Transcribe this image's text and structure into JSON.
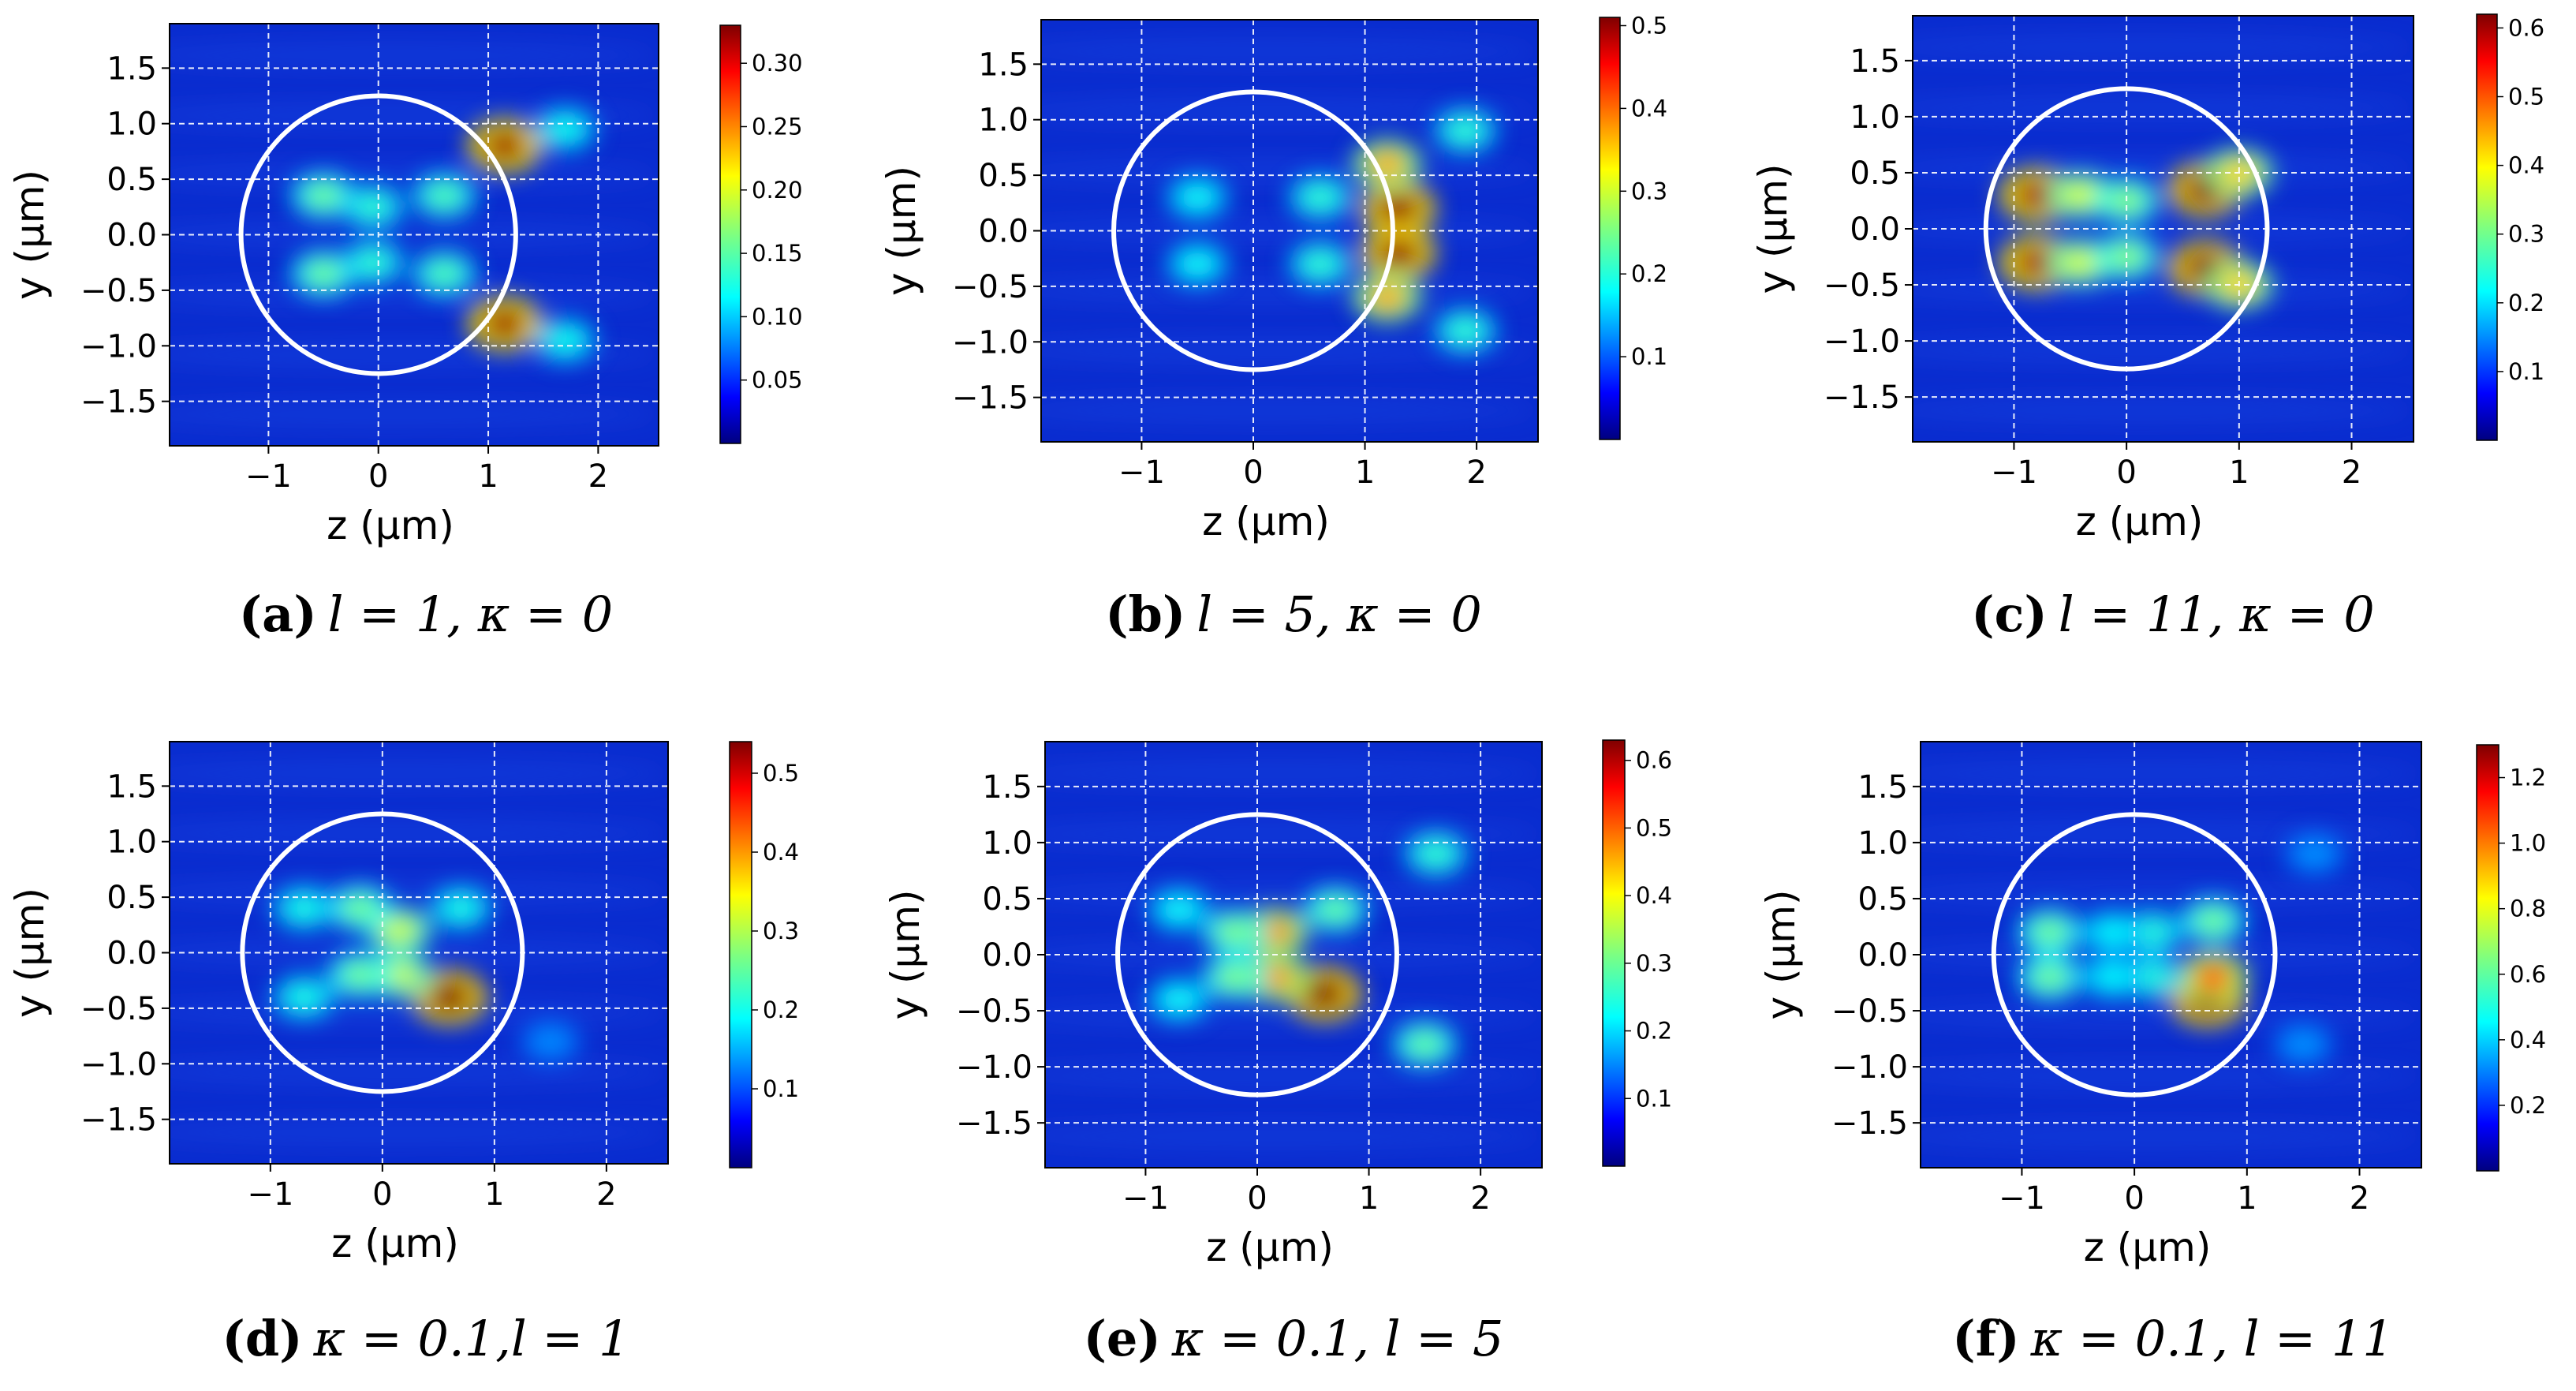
{
  "colors": {
    "grid": "#ffffff",
    "circle": "#ffffff",
    "background_field": "#0a2ccf",
    "colormap": [
      "#00007f",
      "#0000ff",
      "#007fff",
      "#00ffff",
      "#7fff7f",
      "#ffff00",
      "#ff7f00",
      "#ff0000",
      "#7f0000"
    ]
  },
  "chart_data": [
    {
      "id": "a",
      "type": "heatmap",
      "caption_letter": "(a)",
      "caption_text": "l = 1, κ = 0",
      "xlabel": "z (μm)",
      "ylabel": "y (μm)",
      "xlim": [
        -1.9,
        2.55
      ],
      "ylim": [
        -1.9,
        1.9
      ],
      "xticks": [
        -1,
        0,
        1,
        2
      ],
      "xtick_labels": [
        "−1",
        "0",
        "1",
        "2"
      ],
      "yticks": [
        -1.5,
        -1.0,
        -0.5,
        0.0,
        0.5,
        1.0,
        1.5
      ],
      "ytick_labels": [
        "−1.5",
        "−1.0",
        "−0.5",
        "0.0",
        "0.5",
        "1.0",
        "1.5"
      ],
      "grid": true,
      "circle_radius": 1.25,
      "colorbar": {
        "min": 0,
        "max": 0.33,
        "ticks": [
          0.05,
          0.1,
          0.15,
          0.2,
          0.25,
          0.3
        ],
        "tick_labels": [
          "0.05",
          "0.10",
          "0.15",
          "0.20",
          "0.25",
          "0.30"
        ]
      },
      "hotspots": [
        [
          1.15,
          0.8,
          0.32
        ],
        [
          1.15,
          -0.8,
          0.32
        ],
        [
          -0.5,
          0.35,
          0.15
        ],
        [
          -0.5,
          -0.35,
          0.15
        ],
        [
          -0.05,
          0.25,
          0.13
        ],
        [
          -0.05,
          -0.25,
          0.13
        ],
        [
          0.6,
          0.35,
          0.14
        ],
        [
          0.6,
          -0.35,
          0.14
        ],
        [
          1.7,
          0.95,
          0.12
        ],
        [
          1.7,
          -0.95,
          0.12
        ]
      ]
    },
    {
      "id": "b",
      "type": "heatmap",
      "caption_letter": "(b)",
      "caption_text": "l = 5, κ = 0",
      "xlabel": "z (μm)",
      "ylabel": "y (μm)",
      "xlim": [
        -1.9,
        2.55
      ],
      "ylim": [
        -1.9,
        1.9
      ],
      "xticks": [
        -1,
        0,
        1,
        2
      ],
      "xtick_labels": [
        "−1",
        "0",
        "1",
        "2"
      ],
      "yticks": [
        -1.5,
        -1.0,
        -0.5,
        0.0,
        0.5,
        1.0,
        1.5
      ],
      "ytick_labels": [
        "−1.5",
        "−1.0",
        "−0.5",
        "0.0",
        "0.5",
        "1.0",
        "1.5"
      ],
      "grid": true,
      "circle_radius": 1.25,
      "colorbar": {
        "min": 0,
        "max": 0.51,
        "ticks": [
          0.1,
          0.2,
          0.3,
          0.4,
          0.5
        ],
        "tick_labels": [
          "0.1",
          "0.2",
          "0.3",
          "0.4",
          "0.5"
        ]
      },
      "hotspots": [
        [
          1.3,
          0.2,
          0.5
        ],
        [
          1.3,
          -0.2,
          0.5
        ],
        [
          1.2,
          0.6,
          0.35
        ],
        [
          1.2,
          -0.6,
          0.35
        ],
        [
          -0.5,
          0.3,
          0.18
        ],
        [
          -0.5,
          -0.3,
          0.18
        ],
        [
          0.6,
          0.3,
          0.2
        ],
        [
          0.6,
          -0.3,
          0.2
        ],
        [
          1.9,
          0.9,
          0.2
        ],
        [
          1.9,
          -0.9,
          0.2
        ]
      ]
    },
    {
      "id": "c",
      "type": "heatmap",
      "caption_letter": "(c)",
      "caption_text": "l = 11, κ = 0",
      "xlabel": "z (μm)",
      "ylabel": "y (μm)",
      "xlim": [
        -1.9,
        2.55
      ],
      "ylim": [
        -1.9,
        1.9
      ],
      "xticks": [
        -1,
        0,
        1,
        2
      ],
      "xtick_labels": [
        "−1",
        "0",
        "1",
        "2"
      ],
      "yticks": [
        -1.5,
        -1.0,
        -0.5,
        0.0,
        0.5,
        1.0,
        1.5
      ],
      "ytick_labels": [
        "−1.5",
        "−1.0",
        "−0.5",
        "0.0",
        "0.5",
        "1.0",
        "1.5"
      ],
      "grid": true,
      "circle_radius": 1.25,
      "colorbar": {
        "min": 0,
        "max": 0.62,
        "ticks": [
          0.1,
          0.2,
          0.3,
          0.4,
          0.5,
          0.6
        ],
        "tick_labels": [
          "0.1",
          "0.2",
          "0.3",
          "0.4",
          "0.5",
          "0.6"
        ]
      },
      "hotspots": [
        [
          -0.8,
          0.3,
          0.6
        ],
        [
          -0.8,
          -0.3,
          0.6
        ],
        [
          0.7,
          0.35,
          0.62
        ],
        [
          0.7,
          -0.35,
          0.62
        ],
        [
          -0.4,
          0.3,
          0.35
        ],
        [
          -0.4,
          -0.3,
          0.35
        ],
        [
          0.0,
          0.25,
          0.3
        ],
        [
          0.0,
          -0.25,
          0.3
        ],
        [
          1.0,
          0.5,
          0.4
        ],
        [
          1.0,
          -0.5,
          0.4
        ]
      ]
    },
    {
      "id": "d",
      "type": "heatmap",
      "caption_letter": "(d)",
      "caption_text": "κ = 0.1,l = 1",
      "xlabel": "z (μm)",
      "ylabel": "y (μm)",
      "xlim": [
        -1.9,
        2.55
      ],
      "ylim": [
        -1.9,
        1.9
      ],
      "xticks": [
        -1,
        0,
        1,
        2
      ],
      "xtick_labels": [
        "−1",
        "0",
        "1",
        "2"
      ],
      "yticks": [
        -1.5,
        -1.0,
        -0.5,
        0.0,
        0.5,
        1.0,
        1.5
      ],
      "ytick_labels": [
        "−1.5",
        "−1.0",
        "−0.5",
        "0.0",
        "0.5",
        "1.0",
        "1.5"
      ],
      "grid": true,
      "circle_radius": 1.25,
      "colorbar": {
        "min": 0,
        "max": 0.54,
        "ticks": [
          0.1,
          0.2,
          0.3,
          0.4,
          0.5
        ],
        "tick_labels": [
          "0.1",
          "0.2",
          "0.3",
          "0.4",
          "0.5"
        ]
      },
      "hotspots": [
        [
          0.6,
          -0.4,
          0.54
        ],
        [
          0.15,
          0.2,
          0.3
        ],
        [
          0.15,
          -0.2,
          0.3
        ],
        [
          -0.2,
          0.4,
          0.25
        ],
        [
          -0.2,
          -0.2,
          0.25
        ],
        [
          -0.7,
          0.4,
          0.2
        ],
        [
          -0.7,
          -0.4,
          0.2
        ],
        [
          0.7,
          0.4,
          0.2
        ],
        [
          1.5,
          -0.8,
          0.12
        ]
      ]
    },
    {
      "id": "e",
      "type": "heatmap",
      "caption_letter": "(e)",
      "caption_text": "κ = 0.1, l = 5",
      "xlabel": "z (μm)",
      "ylabel": "y (μm)",
      "xlim": [
        -1.9,
        2.55
      ],
      "ylim": [
        -1.9,
        1.9
      ],
      "xticks": [
        -1,
        0,
        1,
        2
      ],
      "xtick_labels": [
        "−1",
        "0",
        "1",
        "2"
      ],
      "yticks": [
        -1.5,
        -1.0,
        -0.5,
        0.0,
        0.5,
        1.0,
        1.5
      ],
      "ytick_labels": [
        "−1.5",
        "−1.0",
        "−0.5",
        "0.0",
        "0.5",
        "1.0",
        "1.5"
      ],
      "grid": true,
      "circle_radius": 1.25,
      "colorbar": {
        "min": 0,
        "max": 0.63,
        "ticks": [
          0.1,
          0.2,
          0.3,
          0.4,
          0.5,
          0.6
        ],
        "tick_labels": [
          "0.1",
          "0.2",
          "0.3",
          "0.4",
          "0.5",
          "0.6"
        ]
      },
      "hotspots": [
        [
          0.6,
          -0.35,
          0.63
        ],
        [
          0.15,
          0.2,
          0.45
        ],
        [
          0.15,
          -0.2,
          0.45
        ],
        [
          -0.2,
          0.2,
          0.3
        ],
        [
          -0.2,
          -0.2,
          0.3
        ],
        [
          -0.7,
          0.4,
          0.22
        ],
        [
          -0.7,
          -0.4,
          0.22
        ],
        [
          0.7,
          0.4,
          0.28
        ],
        [
          1.6,
          0.9,
          0.25
        ],
        [
          1.5,
          -0.8,
          0.28
        ]
      ]
    },
    {
      "id": "f",
      "type": "heatmap",
      "caption_letter": "(f)",
      "caption_text": "κ = 0.1, l = 11",
      "xlabel": "z (μm)",
      "ylabel": "y (μm)",
      "xlim": [
        -1.9,
        2.55
      ],
      "ylim": [
        -1.9,
        1.9
      ],
      "xticks": [
        -1,
        0,
        1,
        2
      ],
      "xtick_labels": [
        "−1",
        "0",
        "1",
        "2"
      ],
      "yticks": [
        -1.5,
        -1.0,
        -0.5,
        0.0,
        0.5,
        1.0,
        1.5
      ],
      "ytick_labels": [
        "−1.5",
        "−1.0",
        "−0.5",
        "0.0",
        "0.5",
        "1.0",
        "1.5"
      ],
      "grid": true,
      "circle_radius": 1.25,
      "colorbar": {
        "min": 0,
        "max": 1.3,
        "ticks": [
          0.2,
          0.4,
          0.6,
          0.8,
          1.0,
          1.2
        ],
        "tick_labels": [
          "0.2",
          "0.4",
          "0.6",
          "0.8",
          "1.0",
          "1.2"
        ]
      },
      "hotspots": [
        [
          0.65,
          -0.4,
          1.3
        ],
        [
          0.7,
          -0.2,
          1.0
        ],
        [
          -0.75,
          0.2,
          0.6
        ],
        [
          -0.75,
          -0.2,
          0.6
        ],
        [
          0.15,
          0.2,
          0.5
        ],
        [
          0.15,
          -0.2,
          0.5
        ],
        [
          -0.2,
          0.2,
          0.45
        ],
        [
          -0.2,
          -0.2,
          0.45
        ],
        [
          0.7,
          0.3,
          0.6
        ],
        [
          1.6,
          0.9,
          0.3
        ],
        [
          1.5,
          -0.8,
          0.3
        ]
      ]
    }
  ]
}
